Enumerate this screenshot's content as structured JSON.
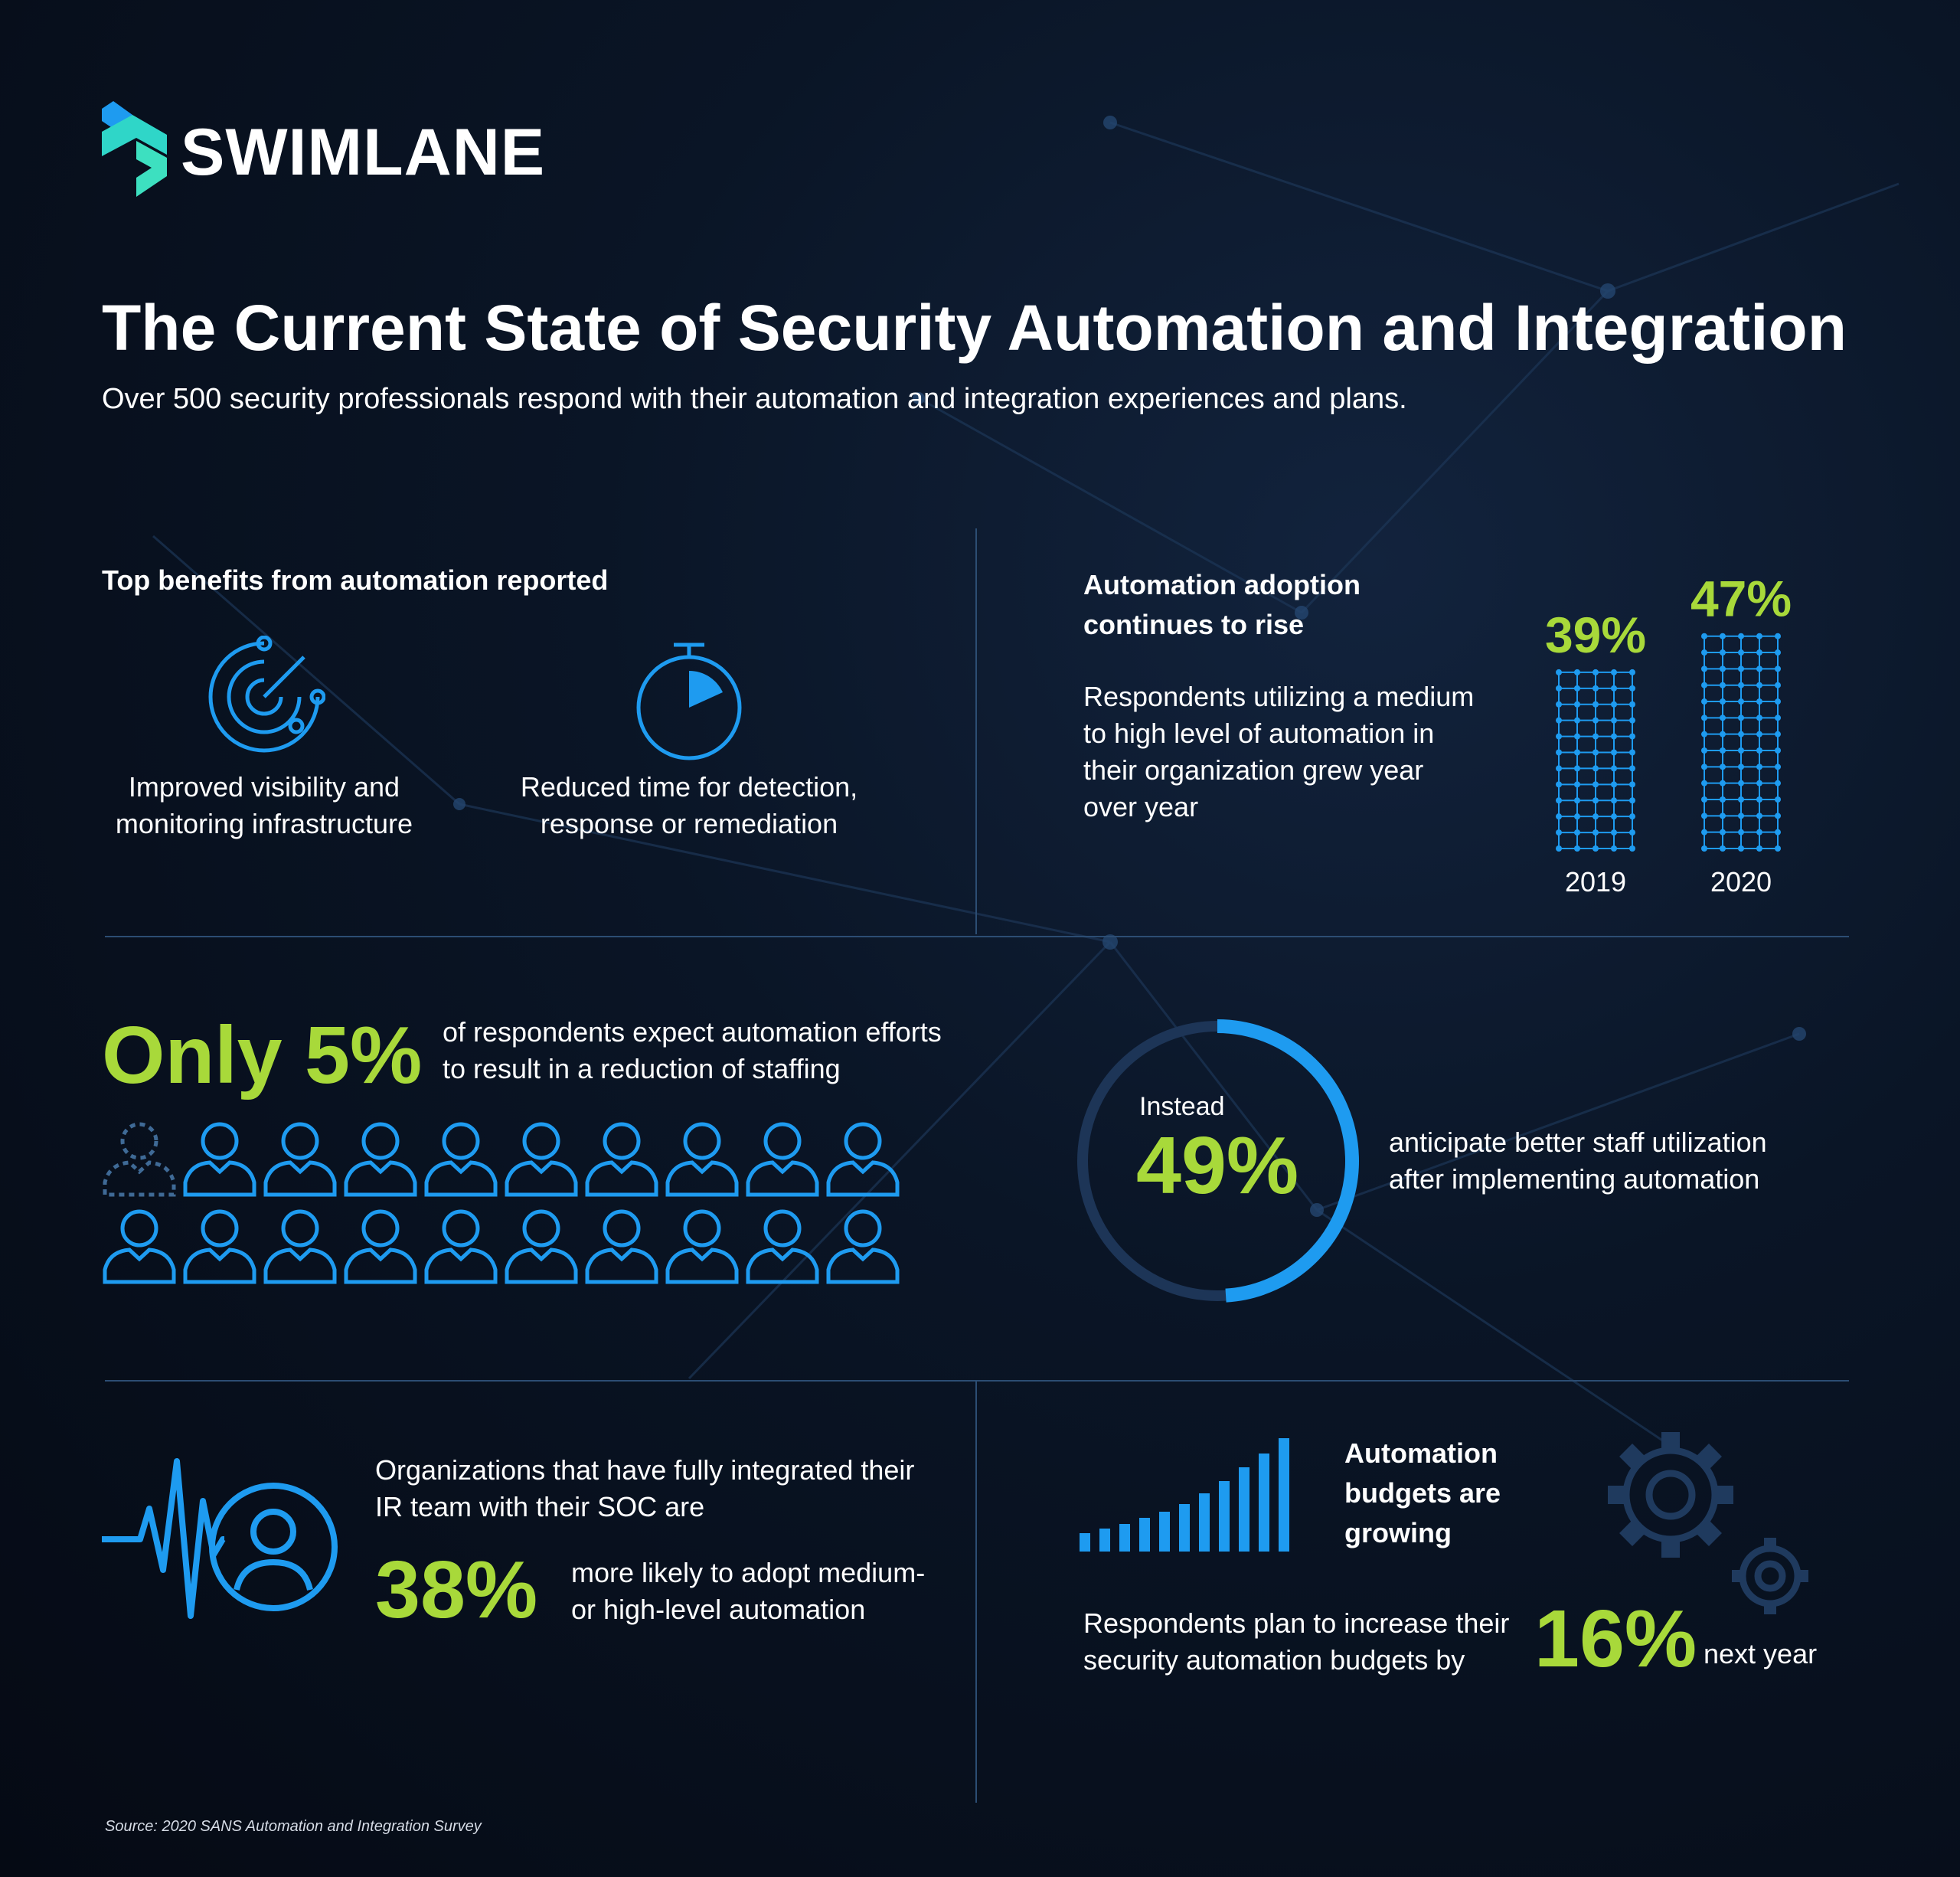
{
  "brand": {
    "name": "SWIMLANE"
  },
  "header": {
    "title": "The Current State of Security Automation and Integration",
    "subtitle": "Over 500 security professionals respond with their automation and integration experiences and plans."
  },
  "benefits": {
    "heading": "Top benefits from automation reported",
    "items": [
      {
        "icon": "radar-icon",
        "label_line1": "Improved visibility and",
        "label_line2": "monitoring infrastructure"
      },
      {
        "icon": "stopwatch-icon",
        "label_line1": "Reduced time for detection,",
        "label_line2": "response or remediation"
      }
    ]
  },
  "adoption": {
    "heading_line1": "Automation adoption",
    "heading_line2": "continues to rise",
    "text_lines": [
      "Respondents utilizing a medium",
      "to high level of automation in",
      "their organization grew year",
      "over year"
    ],
    "chart_data": {
      "type": "bar",
      "categories": [
        "2019",
        "2020"
      ],
      "values": [
        39,
        47
      ],
      "value_labels": [
        "39%",
        "47%"
      ]
    }
  },
  "staffing": {
    "highlight": "Only 5%",
    "text_line1": "of respondents expect automation efforts",
    "text_line2": "to result in a reduction of staffing",
    "people_total": 20,
    "people_dashed": 1
  },
  "utilization": {
    "instead": "Instead",
    "value": "49%",
    "fraction": 0.49,
    "text_line1": "anticipate better staff utilization",
    "text_line2": "after implementing automation"
  },
  "integration": {
    "text_line1": "Organizations that have fully integrated their",
    "text_line2": "IR team with their SOC are",
    "value": "38%",
    "text2_line1": "more likely to adopt medium-",
    "text2_line2": "or high-level automation"
  },
  "budgets": {
    "heading_line1": "Automation",
    "heading_line2": "budgets are",
    "heading_line3": "growing",
    "text_line1": "Respondents plan to increase their",
    "text_line2": "security automation budgets by",
    "value": "16%",
    "suffix": "next year"
  },
  "source": "Source: 2020 SANS Automation and Integration Survey",
  "colors": {
    "accent_green": "#a8d93a",
    "accent_blue": "#1e9bf0",
    "background": "#070d1a"
  }
}
